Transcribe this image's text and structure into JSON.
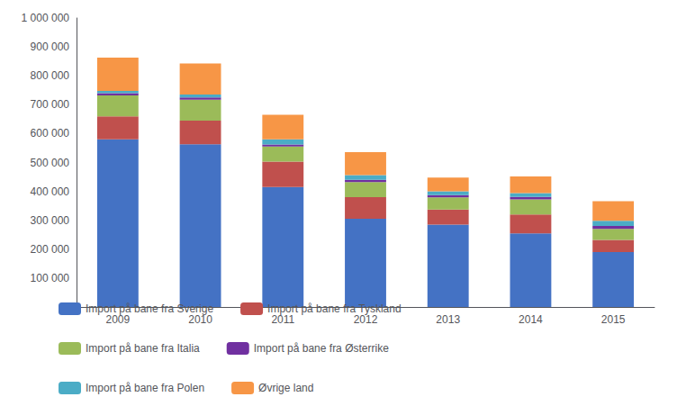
{
  "chart_data": {
    "type": "bar",
    "stacked": true,
    "grid": false,
    "legend": "bottom",
    "categories": [
      "2009",
      "2010",
      "2011",
      "2012",
      "2013",
      "2014",
      "2015"
    ],
    "series": [
      {
        "name": "Import på bane fra Sverige",
        "color": "#4472C4",
        "values": [
          580000,
          563000,
          415000,
          305000,
          285000,
          255000,
          190000
        ]
      },
      {
        "name": "Import på bane fra Tyskland",
        "color": "#C0504D",
        "values": [
          80000,
          82000,
          88000,
          75000,
          52000,
          65000,
          42000
        ]
      },
      {
        "name": "Import på bane fra Italia",
        "color": "#9BBB59",
        "values": [
          72000,
          72000,
          52000,
          52000,
          42000,
          52000,
          38000
        ]
      },
      {
        "name": "Import på bane fra Østerrike",
        "color": "#7030A0",
        "values": [
          8000,
          8000,
          7000,
          8000,
          8000,
          9000,
          10000
        ]
      },
      {
        "name": "Import på bane fra Polen",
        "color": "#4BACC6",
        "values": [
          8000,
          10000,
          18000,
          16000,
          13000,
          13000,
          18000
        ]
      },
      {
        "name": "Øvrige land",
        "color": "#F79646",
        "values": [
          115000,
          108000,
          85000,
          80000,
          48000,
          58000,
          68000
        ]
      }
    ],
    "ylim": [
      0,
      1000000
    ],
    "yticks": [
      {
        "value": 0,
        "label": "-"
      },
      {
        "value": 100000,
        "label": "100 000"
      },
      {
        "value": 200000,
        "label": "200 000"
      },
      {
        "value": 300000,
        "label": "300 000"
      },
      {
        "value": 400000,
        "label": "400 000"
      },
      {
        "value": 500000,
        "label": "500 000"
      },
      {
        "value": 600000,
        "label": "600 000"
      },
      {
        "value": 700000,
        "label": "700 000"
      },
      {
        "value": 800000,
        "label": "800 000"
      },
      {
        "value": 900000,
        "label": "900 000"
      },
      {
        "value": 1000000,
        "label": "1 000 000"
      }
    ]
  }
}
